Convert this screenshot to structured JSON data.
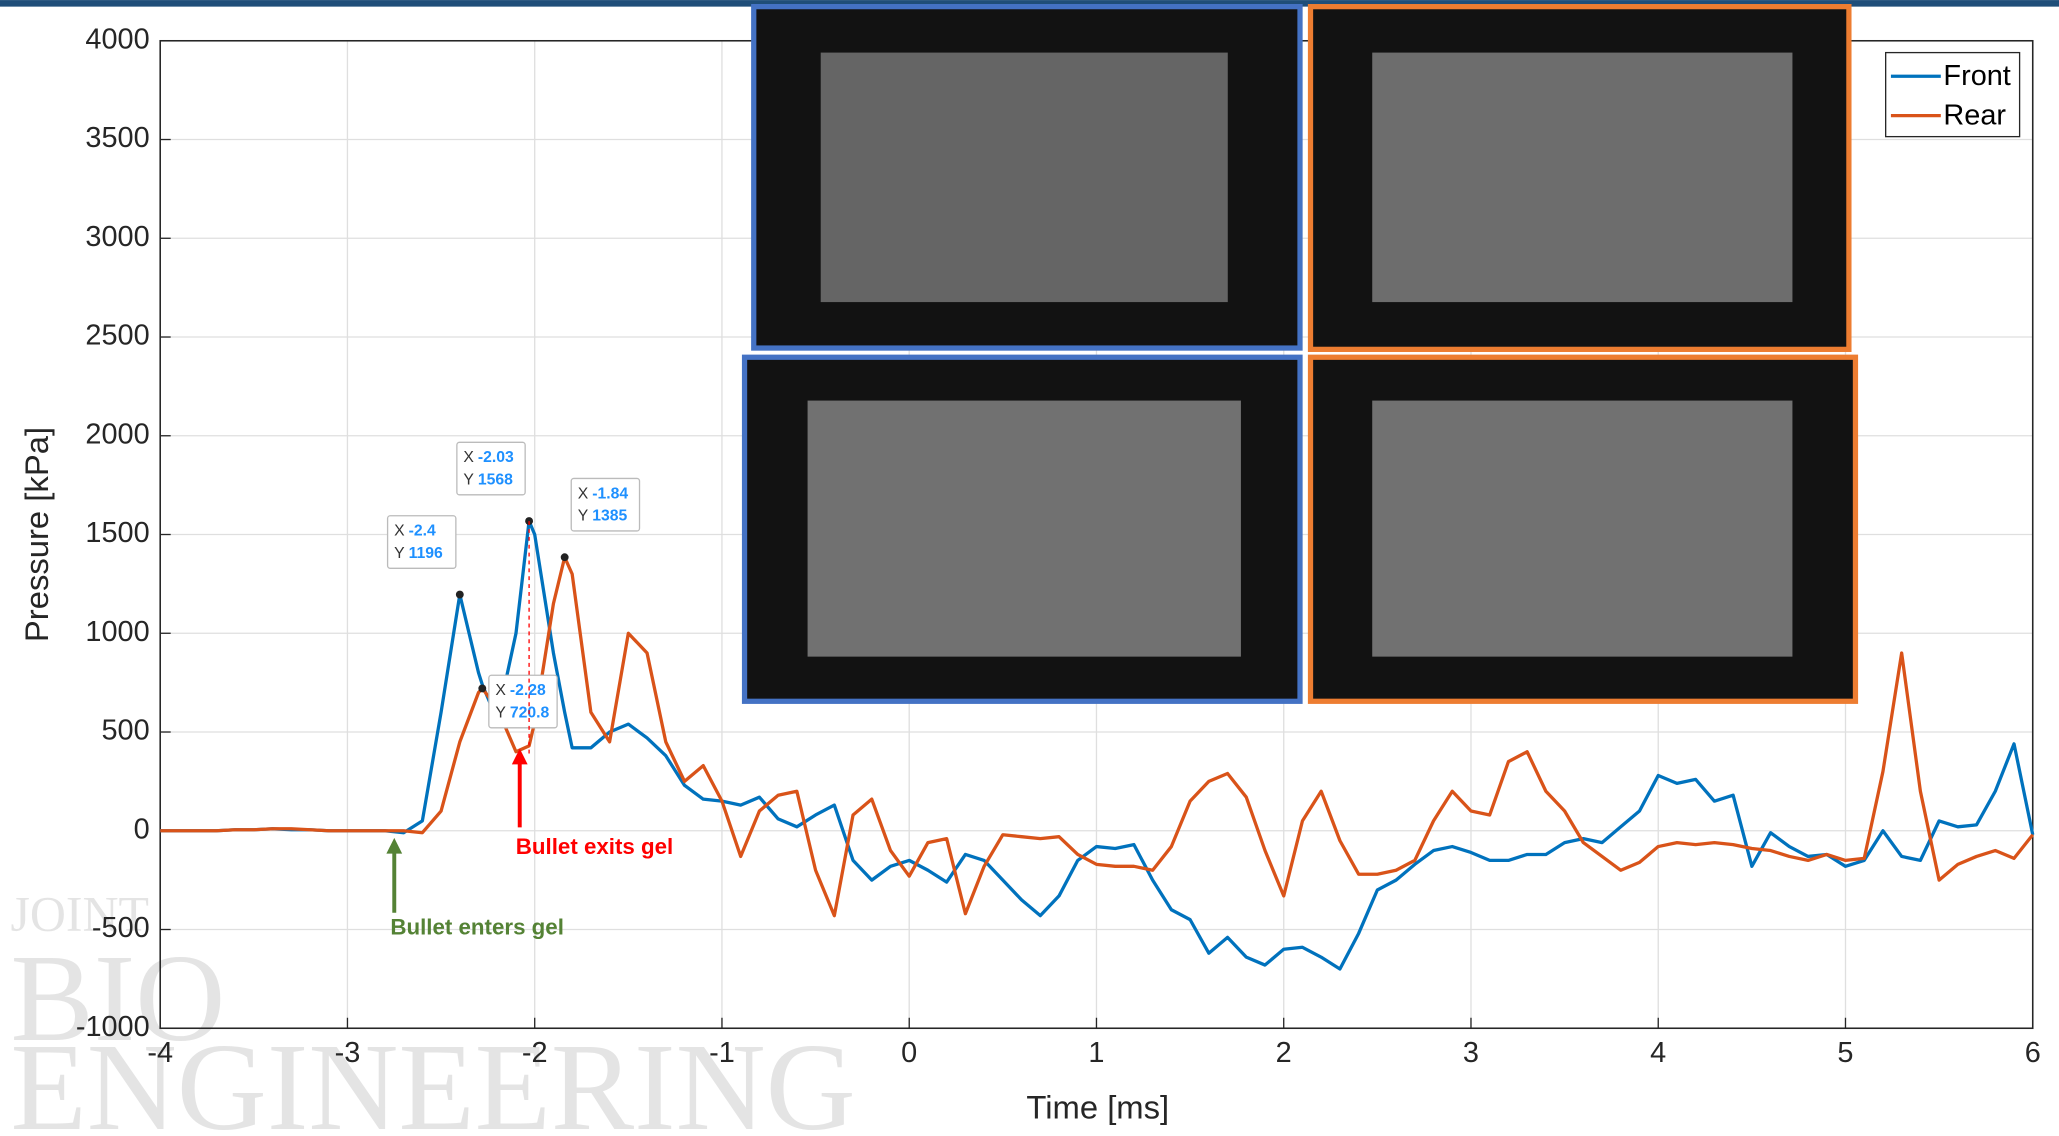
{
  "chart_data": {
    "type": "line",
    "xlabel": "Time [ms]",
    "ylabel": "Pressure [kPa]",
    "x": [
      -4,
      -3.9,
      -3.8,
      -3.7,
      -3.6,
      -3.5,
      -3.4,
      -3.3,
      -3.2,
      -3.1,
      -3,
      -2.9,
      -2.8,
      -2.7,
      -2.6,
      -2.5,
      -2.4,
      -2.3,
      -2.28,
      -2.2,
      -2.1,
      -2.03,
      -2,
      -1.9,
      -1.84,
      -1.8,
      -1.7,
      -1.6,
      -1.5,
      -1.4,
      -1.3,
      -1.2,
      -1.1,
      -1,
      -0.9,
      -0.8,
      -0.7,
      -0.6,
      -0.5,
      -0.4,
      -0.3,
      -0.2,
      -0.1,
      0,
      0.1,
      0.2,
      0.3,
      0.4,
      0.5,
      0.6,
      0.7,
      0.8,
      0.9,
      1,
      1.1,
      1.2,
      1.3,
      1.4,
      1.5,
      1.6,
      1.7,
      1.8,
      1.9,
      2,
      2.1,
      2.2,
      2.3,
      2.4,
      2.5,
      2.6,
      2.7,
      2.8,
      2.9,
      3,
      3.1,
      3.2,
      3.3,
      3.4,
      3.5,
      3.6,
      3.7,
      3.8,
      3.9,
      4,
      4.1,
      4.2,
      4.3,
      4.4,
      4.5,
      4.6,
      4.7,
      4.8,
      4.9,
      5,
      5.1,
      5.2,
      5.3,
      5.4,
      5.5,
      5.6,
      5.7,
      5.8,
      5.9,
      6
    ],
    "series": [
      {
        "name": "Front",
        "color": "#0072bd",
        "values": [
          0,
          0,
          0,
          0,
          5,
          5,
          10,
          5,
          5,
          0,
          0,
          0,
          0,
          -10,
          50,
          600,
          1196,
          800,
          740,
          560,
          1000,
          1568,
          1500,
          900,
          600,
          420,
          420,
          500,
          540,
          470,
          380,
          230,
          160,
          150,
          130,
          170,
          60,
          20,
          80,
          130,
          -150,
          -250,
          -180,
          -150,
          -200,
          -260,
          -120,
          -150,
          -250,
          -350,
          -430,
          -330,
          -150,
          -80,
          -90,
          -70,
          -250,
          -400,
          -450,
          -620,
          -540,
          -640,
          -680,
          -600,
          -590,
          -640,
          -700,
          -520,
          -300,
          -250,
          -170,
          -100,
          -80,
          -110,
          -150,
          -150,
          -120,
          -120,
          -60,
          -40,
          -60,
          20,
          100,
          280,
          240,
          260,
          150,
          180,
          -180,
          -10,
          -80,
          -130,
          -120,
          -180,
          -150,
          0,
          -130,
          -150,
          50,
          20,
          30,
          200,
          440,
          -20
        ]
      },
      {
        "name": "Rear",
        "color": "#d95319",
        "values": [
          0,
          0,
          0,
          0,
          5,
          5,
          10,
          10,
          5,
          0,
          0,
          0,
          0,
          0,
          -10,
          100,
          450,
          700,
          720.8,
          620,
          400,
          430,
          550,
          1150,
          1385,
          1300,
          600,
          450,
          1000,
          900,
          450,
          250,
          330,
          150,
          -130,
          100,
          180,
          200,
          -200,
          -430,
          80,
          160,
          -100,
          -230,
          -60,
          -40,
          -420,
          -180,
          -20,
          -30,
          -40,
          -30,
          -120,
          -170,
          -180,
          -180,
          -200,
          -80,
          150,
          250,
          290,
          170,
          -100,
          -330,
          50,
          200,
          -50,
          -220,
          -220,
          -200,
          -150,
          50,
          200,
          100,
          80,
          350,
          400,
          200,
          100,
          -60,
          -130,
          -200,
          -160,
          -80,
          -60,
          -70,
          -60,
          -70,
          -90,
          -100,
          -130,
          -150,
          -120,
          -150,
          -140,
          300,
          900,
          200,
          -250,
          -170,
          -130,
          -100,
          -140,
          -20
        ]
      }
    ],
    "xlim": [
      -4,
      6
    ],
    "xticks": [
      -4,
      -3,
      -2,
      -1,
      0,
      1,
      2,
      3,
      4,
      5,
      6
    ],
    "ylim": [
      -1000,
      4000
    ],
    "yticks": [
      -1000,
      -500,
      0,
      500,
      1000,
      1500,
      2000,
      2500,
      3000,
      3500,
      4000
    ],
    "grid": true,
    "legend": "upper right",
    "datatips": [
      {
        "x_label": "X",
        "x": -2.4,
        "y_label": "Y",
        "y": 1196
      },
      {
        "x_label": "X",
        "x": -2.03,
        "y_label": "Y",
        "y": 1568
      },
      {
        "x_label": "X",
        "x": -1.84,
        "y_label": "Y",
        "y": 1385
      },
      {
        "x_label": "X",
        "x": -2.28,
        "y_label": "Y",
        "y": 720.8
      }
    ],
    "annotations": [
      {
        "text": "Bullet enters gel",
        "x": -2.75,
        "color": "#548235"
      },
      {
        "text": "Bullet exits gel",
        "x": -2.08,
        "color": "#ff0000"
      }
    ],
    "watermark": [
      "JOINT",
      "BIO",
      "ENGINEERING"
    ]
  }
}
